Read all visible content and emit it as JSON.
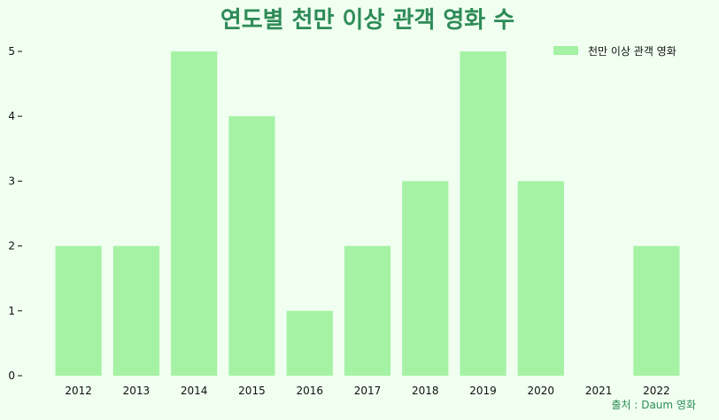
{
  "chart_data": {
    "type": "bar",
    "title": "연도별 천만 이상 관객 영화 수",
    "xlabel": "",
    "ylabel": "",
    "categories": [
      "2012",
      "2013",
      "2014",
      "2015",
      "2016",
      "2017",
      "2018",
      "2019",
      "2020",
      "2021",
      "2022"
    ],
    "series": [
      {
        "name": "천만 이상 관객 영화",
        "values": [
          2,
          2,
          5,
          4,
          1,
          2,
          3,
          5,
          3,
          0,
          2
        ]
      }
    ],
    "ylim": [
      0,
      5
    ],
    "yticks": [
      0,
      1,
      2,
      3,
      4,
      5
    ],
    "grid": false,
    "legend_position": "top-right",
    "source": "출처 : Daum 영화"
  },
  "colors": {
    "background": "#f0fff0",
    "bar": "#a5f2a5",
    "title": "#2e8b57",
    "source": "#2e8b57",
    "text": "#111111"
  }
}
